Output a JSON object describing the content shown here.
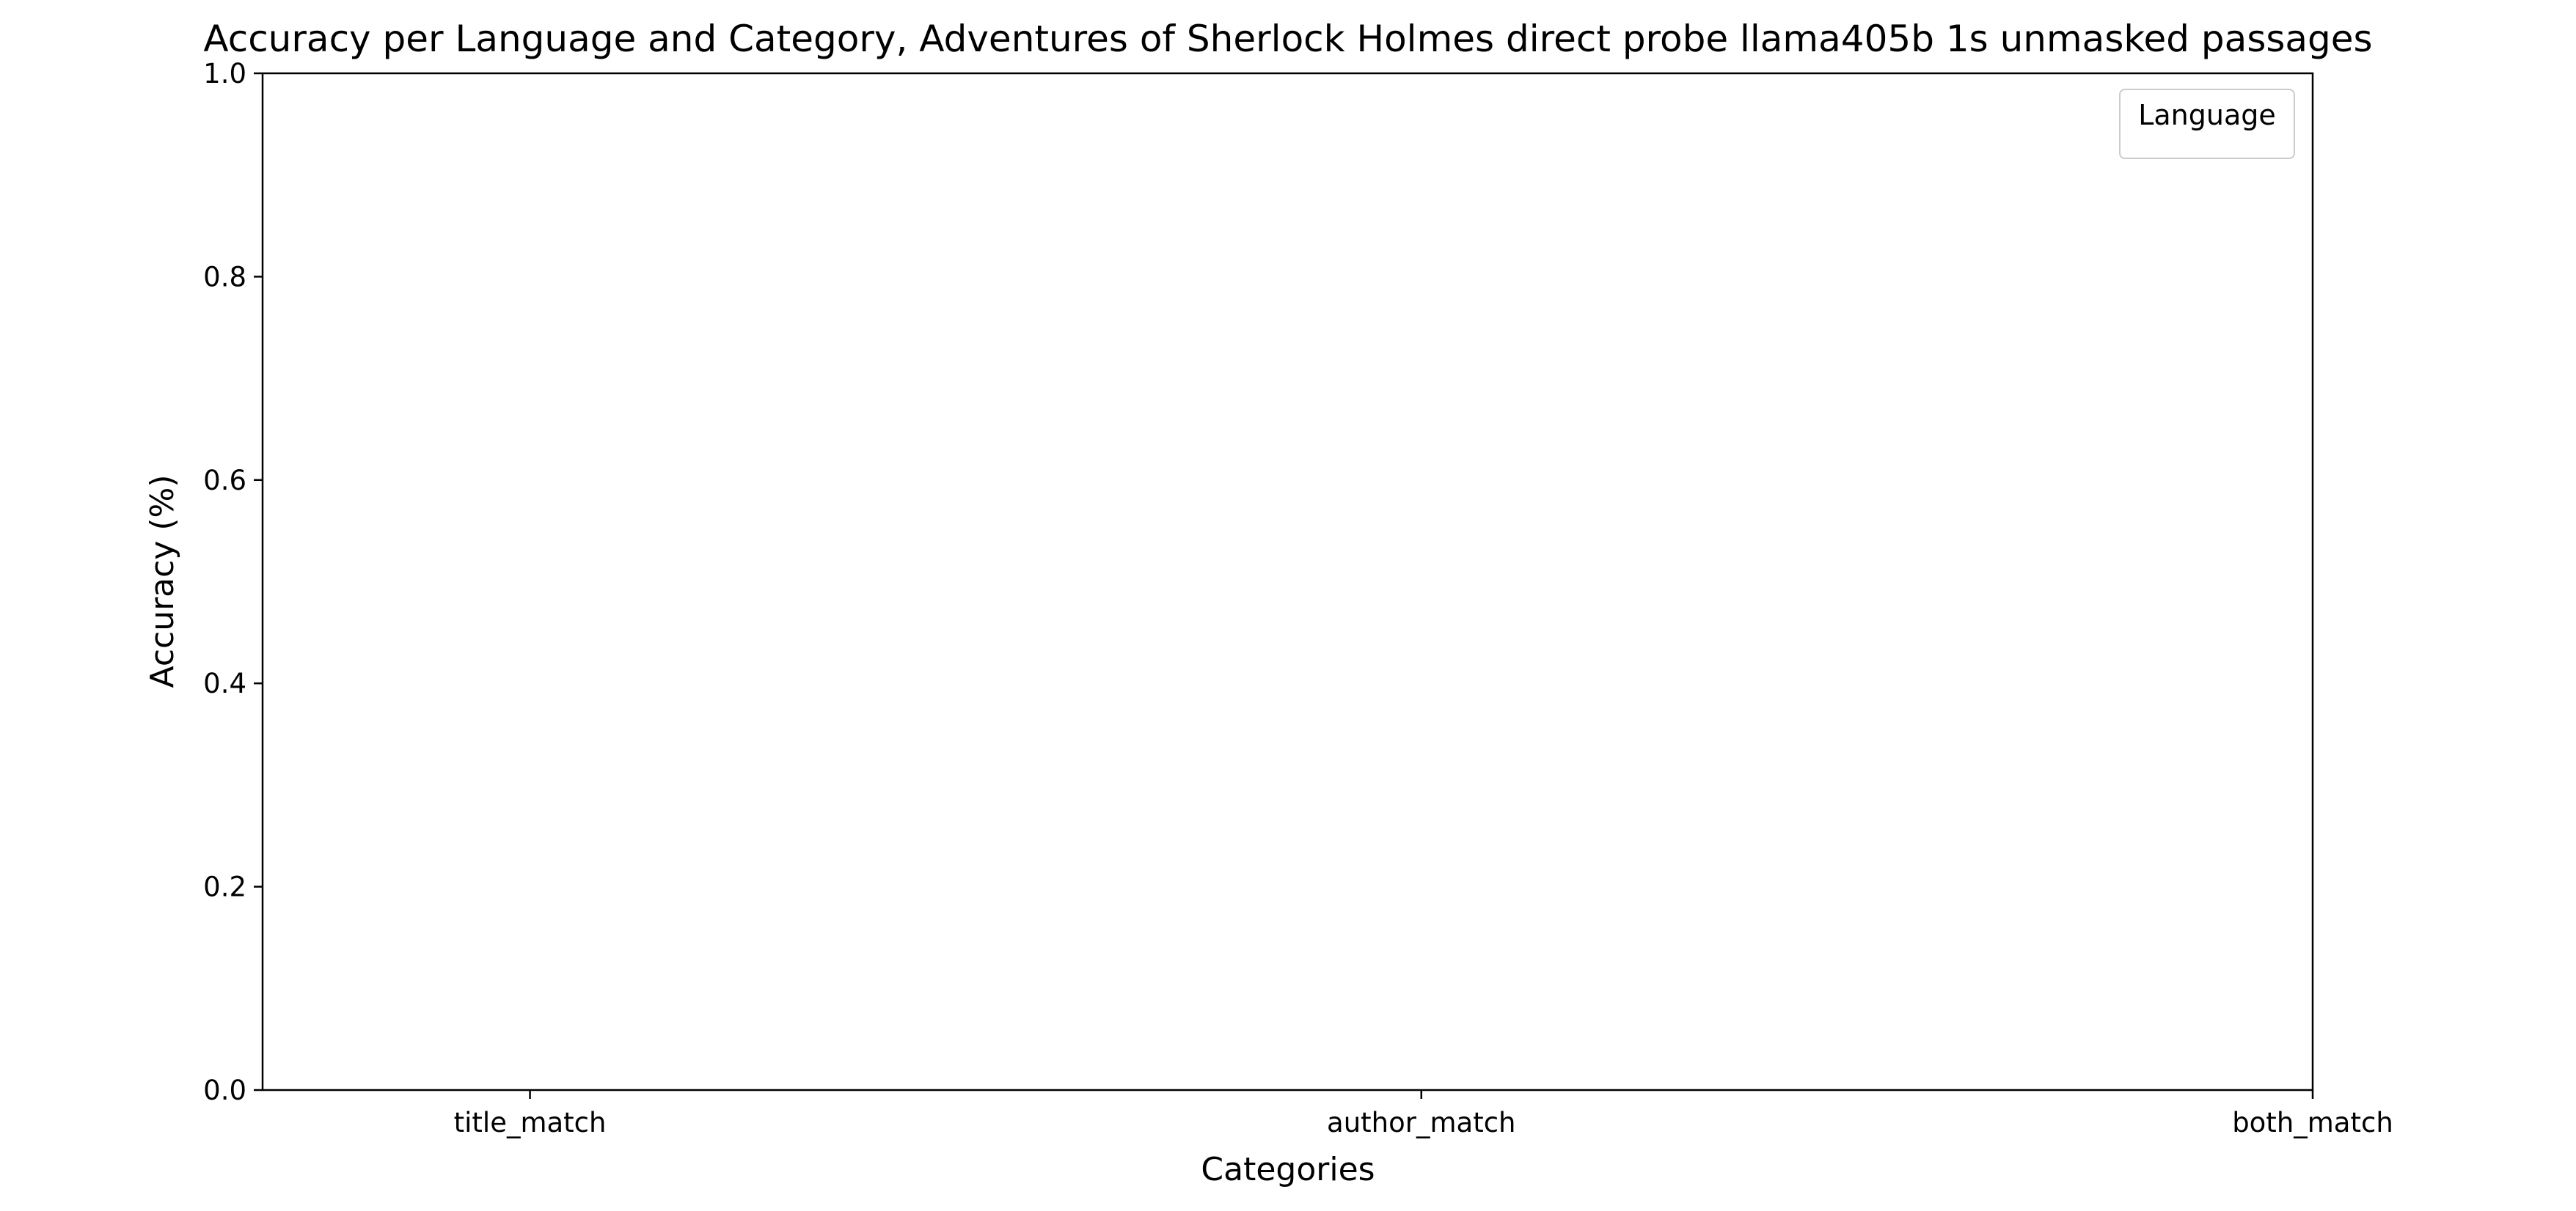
{
  "chart_data": {
    "type": "bar",
    "title": "Accuracy per Language and Category, Adventures of Sherlock Holmes direct probe llama405b 1s unmasked passages",
    "xlabel": "Categories",
    "ylabel": "Accuracy (%)",
    "categories": [
      "title_match",
      "author_match",
      "both_match"
    ],
    "series": [],
    "ylim": [
      0,
      1
    ],
    "yticks": [
      "0.0",
      "0.2",
      "0.4",
      "0.6",
      "0.8",
      "1.0"
    ],
    "grid": false,
    "legend": {
      "title": "Language",
      "placement": "top-right",
      "entries": []
    }
  },
  "colors": {
    "background": "#ffffff",
    "axis": "#000000",
    "legend_border": "#cccccc"
  }
}
